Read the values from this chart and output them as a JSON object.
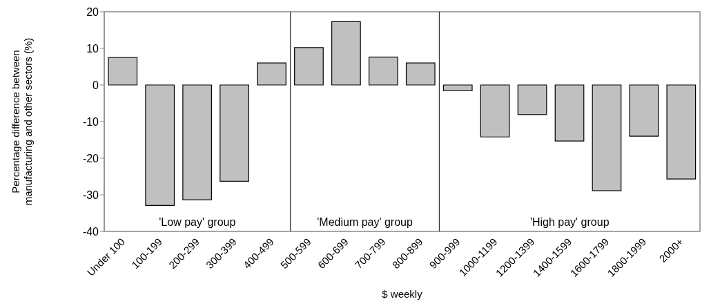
{
  "chart_data": {
    "type": "bar",
    "xlabel": "$ weekly",
    "ylabel": "Percentage difference between manufacturing and other sectors (%)",
    "categories": [
      "Under 100",
      "100-199",
      "200-299",
      "300-399",
      "400-499",
      "500-599",
      "600-699",
      "700-799",
      "800-899",
      "900-999",
      "1000-1199",
      "1200-1399",
      "1400-1599",
      "1600-1799",
      "1800-1999",
      "2000+"
    ],
    "values": [
      7.5,
      -32.9,
      -31.4,
      -26.3,
      6.0,
      10.2,
      17.3,
      7.6,
      6.0,
      -1.6,
      -14.2,
      -8.1,
      -15.3,
      -28.9,
      -14.0,
      -25.7
    ],
    "color": "#c0c0c0",
    "ylim": [
      -40,
      20
    ],
    "yticks": [
      -40,
      -30,
      -20,
      -10,
      0,
      10,
      20
    ],
    "annotations": [
      "'Low pay' group",
      "'Medium pay' group",
      "'High pay' group"
    ]
  }
}
